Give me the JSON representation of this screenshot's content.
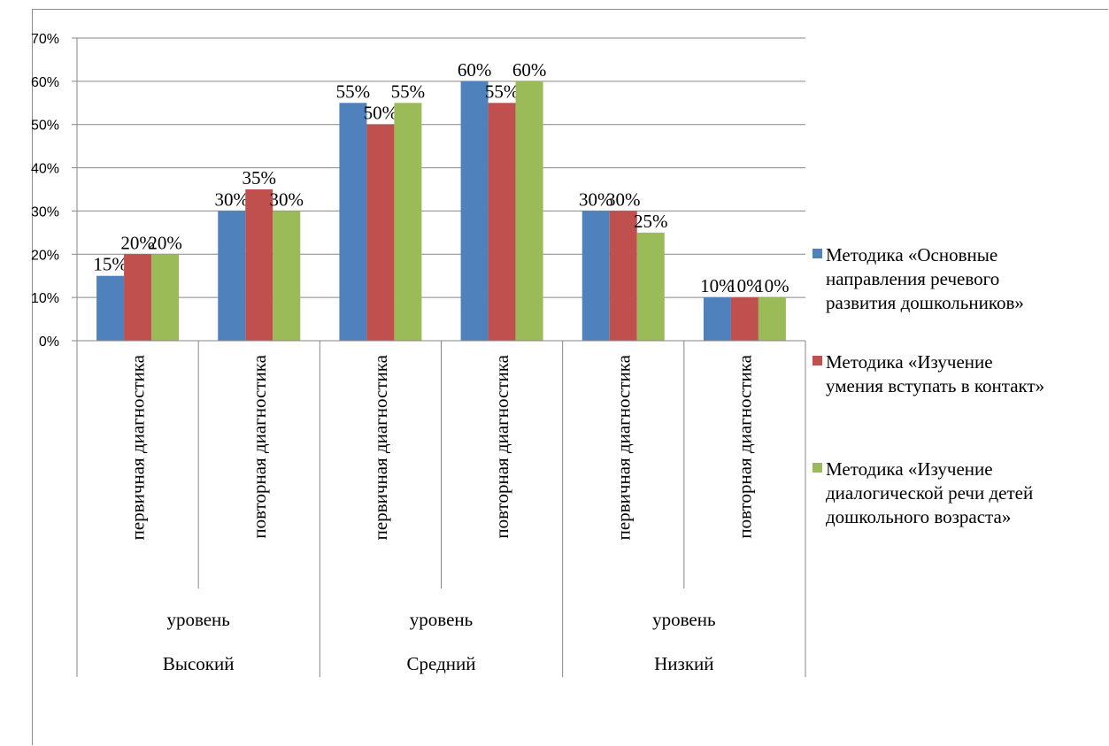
{
  "chart_data": {
    "type": "bar",
    "title": "",
    "xlabel": "",
    "ylabel": "",
    "ylim": [
      0,
      0.7
    ],
    "yticks": [
      0,
      0.1,
      0.2,
      0.3,
      0.4,
      0.5,
      0.6,
      0.7
    ],
    "ytick_labels": [
      "0%",
      "10%",
      "20%",
      "30%",
      "40%",
      "50%",
      "60%",
      "70%"
    ],
    "grid": true,
    "legend_position": "right",
    "categories": [
      {
        "label": "первичная диагностика",
        "sublevel": "уровень",
        "group": "Высокий"
      },
      {
        "label": "повторная диагностика",
        "sublevel": "уровень",
        "group": "Высокий"
      },
      {
        "label": "первичная диагностика",
        "sublevel": "уровень",
        "group": "Средний"
      },
      {
        "label": "повторная диагностика",
        "sublevel": "уровень",
        "group": "Средний"
      },
      {
        "label": "первичная диагностика",
        "sublevel": "уровень",
        "group": "Низкий"
      },
      {
        "label": "повторная диагностика",
        "sublevel": "уровень",
        "group": "Низкий"
      }
    ],
    "groups": [
      {
        "sublevel": "уровень",
        "name": "Высокий"
      },
      {
        "sublevel": "уровень",
        "name": "Средний"
      },
      {
        "sublevel": "уровень",
        "name": "Низкий"
      }
    ],
    "series": [
      {
        "name": "Методика «Основные направления речевого развития дошкольников»",
        "name_lines": [
          "Методика «Основные",
          "направления речевого",
          "развития дошкольников»"
        ],
        "color": "#4f81bd",
        "values": [
          0.15,
          0.3,
          0.55,
          0.6,
          0.3,
          0.1
        ],
        "labels": [
          "15%",
          "30%",
          "55%",
          "60%",
          "30%",
          "10%"
        ]
      },
      {
        "name": "Методика «Изучение умения вступать в контакт»",
        "name_lines": [
          "Методика «Изучение",
          "умения вступать в контакт»"
        ],
        "color": "#c0504d",
        "values": [
          0.2,
          0.35,
          0.5,
          0.55,
          0.3,
          0.1
        ],
        "labels": [
          "20%",
          "35%",
          "50%",
          "55%",
          "30%",
          "10%"
        ]
      },
      {
        "name": "Методика «Изучение диалогической речи детей дошкольного возраста»",
        "name_lines": [
          "Методика «Изучение",
          "диалогической речи детей",
          "дошкольного возраста»"
        ],
        "color": "#9bbb59",
        "values": [
          0.2,
          0.3,
          0.55,
          0.6,
          0.25,
          0.1
        ],
        "labels": [
          "20%",
          "30%",
          "55%",
          "60%",
          "25%",
          "10%"
        ]
      }
    ]
  }
}
